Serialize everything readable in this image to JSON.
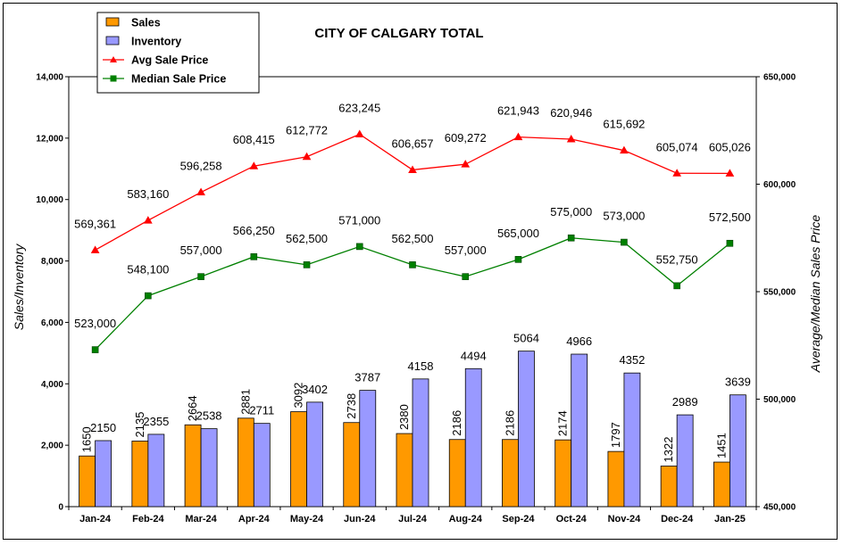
{
  "chart_data": {
    "type": "bar",
    "title": "CITY OF CALGARY TOTAL",
    "ylabel": "Sales/Inventory",
    "y2label": "Average/Median Sales Price",
    "ylim": [
      0,
      14000
    ],
    "y2lim": [
      450000,
      650000
    ],
    "yticks": [
      "0",
      "2,000",
      "4,000",
      "6,000",
      "8,000",
      "10,000",
      "12,000",
      "14,000"
    ],
    "y2ticks": [
      "450,000",
      "500,000",
      "550,000",
      "600,000",
      "650,000"
    ],
    "categories": [
      "Jan-24",
      "Feb-24",
      "Mar-24",
      "Apr-24",
      "May-24",
      "Jun-24",
      "Jul-24",
      "Aug-24",
      "Sep-24",
      "Oct-24",
      "Nov-24",
      "Dec-24",
      "Jan-25"
    ],
    "series": [
      {
        "name": "Sales",
        "type": "bar",
        "color": "#FF9900",
        "values": [
          1650,
          2135,
          2664,
          2881,
          3092,
          2738,
          2380,
          2186,
          2186,
          2174,
          1797,
          1322,
          1451
        ]
      },
      {
        "name": "Inventory",
        "type": "bar",
        "color": "#9999FF",
        "values": [
          2150,
          2355,
          2538,
          2711,
          3402,
          3787,
          4158,
          4494,
          5064,
          4966,
          4352,
          2989,
          3639
        ]
      },
      {
        "name": "Avg Sale Price",
        "type": "line",
        "axis": "right",
        "color": "#FF0000",
        "marker": "triangle",
        "values": [
          569361,
          583160,
          596258,
          608415,
          612772,
          623245,
          606657,
          609272,
          621943,
          620946,
          615692,
          605074,
          605026
        ],
        "labels": [
          "569,361",
          "583,160",
          "596,258",
          "608,415",
          "612,772",
          "623,245",
          "606,657",
          "609,272",
          "621,943",
          "620,946",
          "615,692",
          "605,074",
          "605,026"
        ]
      },
      {
        "name": "Median Sale Price",
        "type": "line",
        "axis": "right",
        "color": "#008000",
        "marker": "square",
        "values": [
          523000,
          548100,
          557000,
          566250,
          562500,
          571000,
          562500,
          557000,
          565000,
          575000,
          573000,
          552750,
          572500
        ],
        "labels": [
          "523,000",
          "548,100",
          "557,000",
          "566,250",
          "562,500",
          "571,000",
          "562,500",
          "557,000",
          "565,000",
          "575,000",
          "573,000",
          "552,750",
          "572,500"
        ]
      }
    ],
    "legend_position": "top-left",
    "grid": false
  }
}
